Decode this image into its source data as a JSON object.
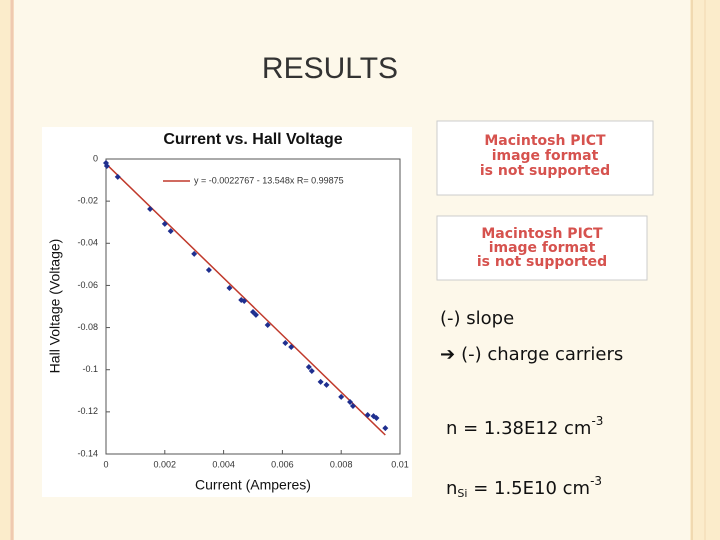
{
  "slide_title": "RESULTS",
  "chart_data": {
    "type": "scatter",
    "title": "Current vs. Hall Voltage",
    "x_label": "Current (Amperes)",
    "y_label": "Hall Voltage (Voltage)",
    "annotation": "y = -0.0022767 - 13.548x  R= 0.99875",
    "fit_line": {
      "intercept": -0.0022767,
      "slope": -13.548,
      "color": "#c0392b"
    },
    "x": [
      0,
      3e-05,
      0.0004,
      0.0015,
      0.002,
      0.0022,
      0.003,
      0.0035,
      0.0042,
      0.0046,
      0.0047,
      0.005,
      0.0051,
      0.0055,
      0.0061,
      0.0063,
      0.0069,
      0.007,
      0.0073,
      0.0075,
      0.008,
      0.0083,
      0.0084,
      0.0089,
      0.0091,
      0.0092,
      0.0095
    ],
    "series": [
      {
        "color": "#1f2f8f",
        "values": [
          -0.0019,
          -0.0033,
          -0.0085,
          -0.0237,
          -0.0308,
          -0.0342,
          -0.045,
          -0.0527,
          -0.0612,
          -0.0669,
          -0.0674,
          -0.0726,
          -0.074,
          -0.0788,
          -0.0873,
          -0.0892,
          -0.0987,
          -0.1006,
          -0.1058,
          -0.1072,
          -0.1129,
          -0.1153,
          -0.1172,
          -0.1215,
          -0.122,
          -0.1229,
          -0.1277
        ]
      }
    ],
    "xlim": [
      0,
      0.01
    ],
    "ylim": [
      -0.14,
      0
    ],
    "xticks": [
      0,
      0.002,
      0.004,
      0.006,
      0.008,
      0.01
    ],
    "yticks": [
      0,
      -0.02,
      -0.04,
      -0.06,
      -0.08,
      -0.1,
      -0.12,
      -0.14
    ]
  },
  "placeholders": [
    {
      "lines": [
        "Macintosh PICT",
        "image format",
        "is not supported"
      ]
    },
    {
      "lines": [
        "Macintosh PICT",
        "image format",
        "is not supported"
      ]
    }
  ],
  "notes": {
    "slope": "(-) slope",
    "arrow": "➔",
    "carriers": "(-) charge carriers",
    "n": {
      "text": "n = 1.38E12 cm",
      "sup": "-3"
    },
    "nsi": {
      "base": "n",
      "sub": "Si",
      "text": " = 1.5E10 cm",
      "sup": "-3"
    }
  }
}
